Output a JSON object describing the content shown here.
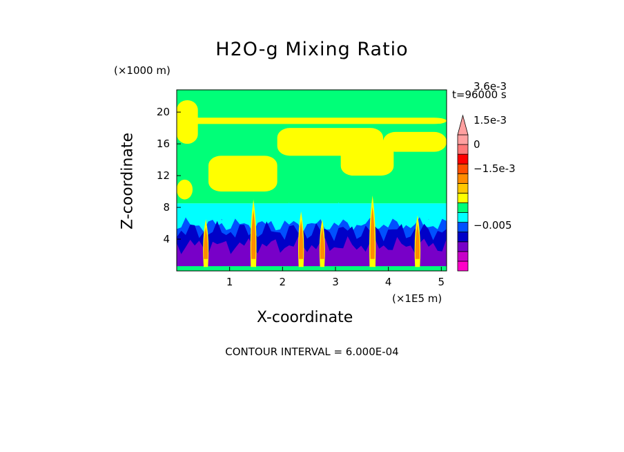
{
  "chart_data": {
    "type": "heatmap",
    "title": "H2O-g Mixing Ratio",
    "xlabel": "X-coordinate",
    "ylabel": "Z-coordinate",
    "x_unit_label": "(×1E5 m)",
    "y_unit_label": "(×1000 m)",
    "time_label": "t=96000 s",
    "contour_interval_label": "CONTOUR INTERVAL = 6.000E-04",
    "xlim": [
      0,
      5.1
    ],
    "ylim": [
      0,
      22.8
    ],
    "x_ticks": [
      1,
      2,
      3,
      4,
      5
    ],
    "x_tick_labels": [
      "1",
      "2",
      "3",
      "4",
      "5"
    ],
    "y_ticks": [
      4,
      8,
      12,
      16,
      20
    ],
    "y_tick_labels": [
      "4",
      "8",
      "12",
      "16",
      "20"
    ],
    "colorbar": {
      "colors": [
        "#ff00c8",
        "#c800c8",
        "#7800c8",
        "#0000c8",
        "#0050ff",
        "#00ffff",
        "#00ff78",
        "#ffff00",
        "#ffc800",
        "#ff8c00",
        "#ff5000",
        "#ff0000",
        "#ff7878",
        "#ffa0a0"
      ],
      "labels": [
        {
          "value": 0.0036,
          "text": "3.6e-3"
        },
        {
          "value": 0.0015,
          "text": "1.5e-3"
        },
        {
          "value": 0,
          "text": "0"
        },
        {
          "value": -0.0015,
          "text": "−1.5e-3"
        },
        {
          "value": -0.005,
          "text": "−0.005"
        }
      ],
      "extend": "max"
    },
    "bands": [
      {
        "zmin": 0,
        "zmax": 1.2,
        "color": "#7800c8"
      },
      {
        "zmin": 1.2,
        "zmax": 3.5,
        "color": "#7800c8"
      },
      {
        "zmin": 3.5,
        "zmax": 5.5,
        "color": "#0000c8"
      },
      {
        "zmin": 5.5,
        "zmax": 6.5,
        "color": "#0050ff"
      },
      {
        "zmin": 6.5,
        "zmax": 8.5,
        "color": "#00ffff"
      },
      {
        "zmin": 8.5,
        "zmax": 22.8,
        "color": "#00ff78"
      }
    ],
    "plumes": [
      {
        "x": 0.55,
        "zmax": 6.5,
        "width": 0.08
      },
      {
        "x": 1.45,
        "zmax": 9.0,
        "width": 0.1
      },
      {
        "x": 2.35,
        "zmax": 7.5,
        "width": 0.09
      },
      {
        "x": 2.75,
        "zmax": 6.5,
        "width": 0.08
      },
      {
        "x": 3.7,
        "zmax": 9.5,
        "width": 0.11
      },
      {
        "x": 4.55,
        "zmax": 7.0,
        "width": 0.09
      }
    ],
    "yellow_regions": [
      {
        "x": 0.0,
        "z": 16.0,
        "w": 0.4,
        "h": 5.5
      },
      {
        "x": 0.6,
        "z": 10.0,
        "w": 1.3,
        "h": 4.5
      },
      {
        "x": 1.9,
        "z": 14.5,
        "w": 2.0,
        "h": 3.5
      },
      {
        "x": 3.1,
        "z": 12.0,
        "w": 1.0,
        "h": 4.5
      },
      {
        "x": 3.9,
        "z": 15.0,
        "w": 1.2,
        "h": 2.5
      },
      {
        "x": 0.0,
        "z": 18.5,
        "w": 5.1,
        "h": 0.8
      },
      {
        "x": 0.0,
        "z": 9.0,
        "w": 0.3,
        "h": 2.5
      }
    ]
  }
}
